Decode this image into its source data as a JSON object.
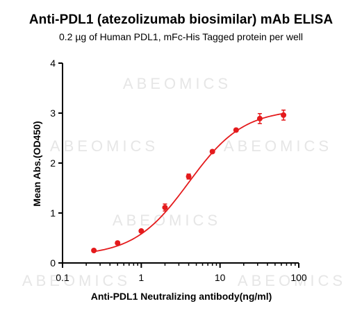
{
  "chart_data": {
    "type": "scatter",
    "title": "Anti-PDL1 (atezolizumab biosimilar) mAb ELISA",
    "subtitle": "0.2 µg of Human PDL1, mFc-His Tagged protein per well",
    "xlabel": "Anti-PDL1 Neutralizing antibody(ng/ml)",
    "ylabel": "Mean Abs.(OD450)",
    "x_scale": "log",
    "xlim": [
      0.1,
      100
    ],
    "ylim": [
      0,
      4
    ],
    "x_ticks": [
      "0.1",
      "1",
      "10",
      "100"
    ],
    "y_ticks": [
      "0",
      "1",
      "2",
      "3",
      "4"
    ],
    "grid": false,
    "marker_color": "#e41a1c",
    "fit": "4PL sigmoid curve",
    "x": [
      0.25,
      0.5,
      1,
      2,
      4,
      8,
      16,
      32,
      64
    ],
    "y": [
      0.25,
      0.4,
      0.64,
      1.11,
      1.73,
      2.23,
      2.66,
      2.89,
      2.96
    ],
    "errors": [
      0.02,
      0.03,
      0.03,
      0.07,
      0.05,
      0.03,
      0.03,
      0.1,
      0.1
    ],
    "watermark": "ABEOMICS"
  }
}
